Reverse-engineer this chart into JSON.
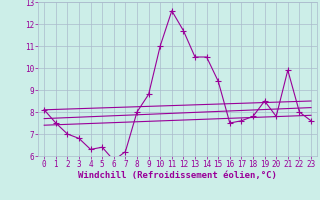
{
  "xlabel": "Windchill (Refroidissement éolien,°C)",
  "background_color": "#cceee8",
  "grid_color": "#aabbcc",
  "line_color": "#990099",
  "xlim": [
    -0.5,
    23.5
  ],
  "ylim": [
    6,
    13
  ],
  "xticks": [
    0,
    1,
    2,
    3,
    4,
    5,
    6,
    7,
    8,
    9,
    10,
    11,
    12,
    13,
    14,
    15,
    16,
    17,
    18,
    19,
    20,
    21,
    22,
    23
  ],
  "yticks": [
    6,
    7,
    8,
    9,
    10,
    11,
    12,
    13
  ],
  "series": {
    "main_x": [
      0,
      1,
      2,
      3,
      4,
      5,
      6,
      7,
      8,
      9,
      10,
      11,
      12,
      13,
      14,
      15,
      16,
      17,
      18,
      19,
      20,
      21,
      22,
      23
    ],
    "main_y": [
      8.1,
      7.5,
      7.0,
      6.8,
      6.3,
      6.4,
      5.8,
      6.2,
      8.0,
      8.8,
      11.0,
      12.6,
      11.7,
      10.5,
      10.5,
      9.4,
      7.5,
      7.6,
      7.8,
      8.5,
      7.8,
      9.9,
      8.0,
      7.6
    ],
    "trend1_x": [
      0,
      23
    ],
    "trend1_y": [
      8.1,
      8.5
    ],
    "trend2_x": [
      0,
      23
    ],
    "trend2_y": [
      7.7,
      8.2
    ],
    "trend3_x": [
      0,
      23
    ],
    "trend3_y": [
      7.4,
      7.85
    ]
  },
  "tick_fontsize": 5.5,
  "xlabel_fontsize": 6.5,
  "marker": "+",
  "marker_size": 4,
  "linewidth": 0.8
}
